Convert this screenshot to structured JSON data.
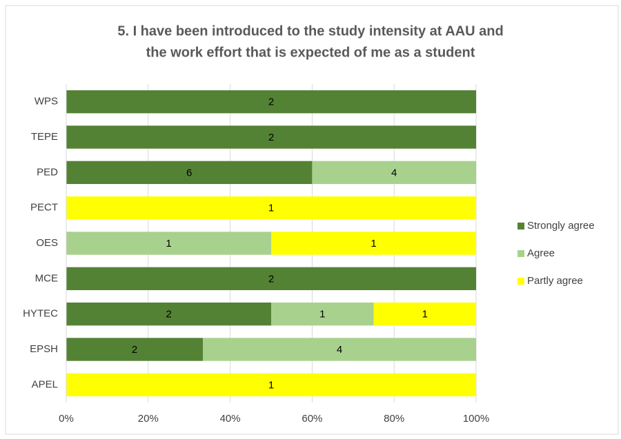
{
  "chart_data": {
    "type": "bar",
    "orientation": "horizontal",
    "stacking": "percent",
    "title": [
      "5. I have been introduced to the study intensity at AAU and",
      "the work effort that is expected of me as a student"
    ],
    "categories": [
      "WPS",
      "TEPE",
      "PED",
      "PECT",
      "OES",
      "MCE",
      "HYTEC",
      "EPSH",
      "APEL"
    ],
    "series": [
      {
        "name": "Strongly agree",
        "color": "#548235",
        "values": [
          2,
          2,
          6,
          null,
          null,
          2,
          2,
          2,
          null
        ]
      },
      {
        "name": "Agree",
        "color": "#a9d18e",
        "values": [
          null,
          null,
          4,
          null,
          1,
          null,
          1,
          4,
          null
        ]
      },
      {
        "name": "Partly agree",
        "color": "#ffff00",
        "values": [
          null,
          null,
          null,
          1,
          1,
          null,
          1,
          null,
          1
        ]
      }
    ],
    "xlim": [
      0,
      100
    ],
    "xticks": [
      {
        "value": 0,
        "label": "0%"
      },
      {
        "value": 20,
        "label": "20%"
      },
      {
        "value": 40,
        "label": "40%"
      },
      {
        "value": 60,
        "label": "60%"
      },
      {
        "value": 80,
        "label": "80%"
      },
      {
        "value": 100,
        "label": "100%"
      }
    ],
    "grid": true,
    "legend": "right",
    "data_labels": true
  }
}
